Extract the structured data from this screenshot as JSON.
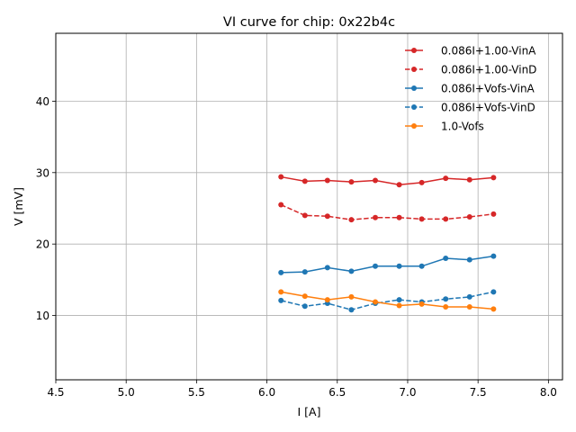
{
  "chart_data": {
    "type": "line",
    "title": "VI curve for chip: 0x22b4c",
    "xlabel": "I [A]",
    "ylabel": "V [mV]",
    "xlim": [
      4.5,
      8.1
    ],
    "ylim": [
      1,
      49.5
    ],
    "xticks": [
      4.5,
      5.0,
      5.5,
      6.0,
      6.5,
      7.0,
      7.5,
      8.0
    ],
    "xtick_labels": [
      "4.5",
      "5.0",
      "5.5",
      "6.0",
      "6.5",
      "7.0",
      "7.5",
      "8.0"
    ],
    "yticks": [
      10,
      20,
      30,
      40
    ],
    "ytick_labels": [
      "10",
      "20",
      "30",
      "40"
    ],
    "grid": true,
    "legend_position": "top-right",
    "x": [
      6.1,
      6.27,
      6.43,
      6.6,
      6.77,
      6.94,
      7.1,
      7.27,
      7.44,
      7.61
    ],
    "series": [
      {
        "name": "0.086I+1.00-VinA",
        "color": "#d62728",
        "dashed": false,
        "values": [
          29.4,
          28.8,
          28.9,
          28.7,
          28.9,
          28.3,
          28.6,
          29.2,
          29.0,
          29.3
        ]
      },
      {
        "name": "0.086I+1.00-VinD",
        "color": "#d62728",
        "dashed": true,
        "values": [
          25.5,
          24.0,
          23.9,
          23.4,
          23.7,
          23.7,
          23.5,
          23.5,
          23.8,
          24.2
        ]
      },
      {
        "name": "0.086I+Vofs-VinA",
        "color": "#1f77b4",
        "dashed": false,
        "values": [
          16.0,
          16.1,
          16.7,
          16.2,
          16.9,
          16.9,
          16.9,
          18.0,
          17.8,
          18.3
        ]
      },
      {
        "name": "0.086I+Vofs-VinD",
        "color": "#1f77b4",
        "dashed": true,
        "values": [
          12.1,
          11.3,
          11.7,
          10.8,
          11.7,
          12.2,
          11.9,
          12.3,
          12.6,
          13.3
        ]
      },
      {
        "name": "1.0-Vofs",
        "color": "#ff7f0e",
        "dashed": false,
        "values": [
          13.3,
          12.7,
          12.2,
          12.6,
          11.9,
          11.4,
          11.6,
          11.2,
          11.2,
          10.9
        ]
      }
    ]
  }
}
